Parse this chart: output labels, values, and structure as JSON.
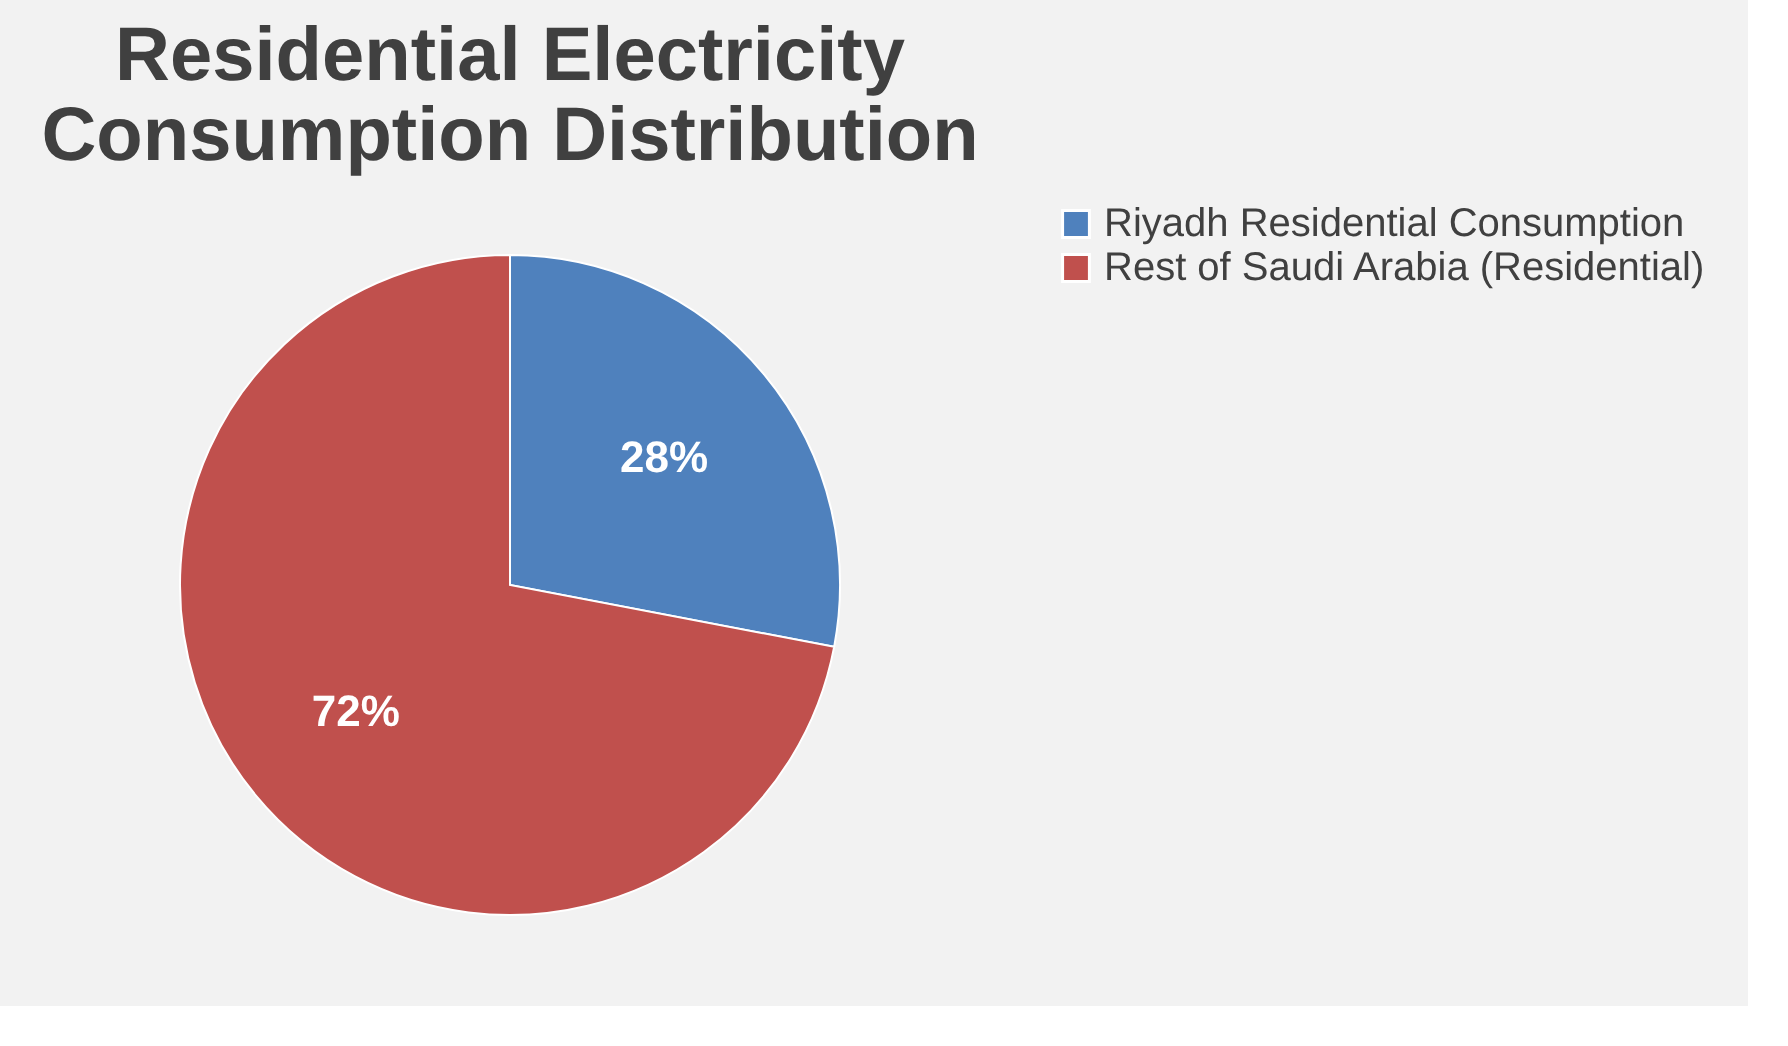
{
  "chart_data": {
    "type": "pie",
    "title": "Residential Electricity Consumption Distribution",
    "categories": [
      "Riyadh Residential Consumption",
      "Rest of Saudi Arabia (Residential)"
    ],
    "values": [
      28,
      72
    ],
    "colors": [
      "#4f81bd",
      "#c0504d"
    ],
    "value_labels": [
      "28%",
      "72%"
    ],
    "legend": "right"
  }
}
